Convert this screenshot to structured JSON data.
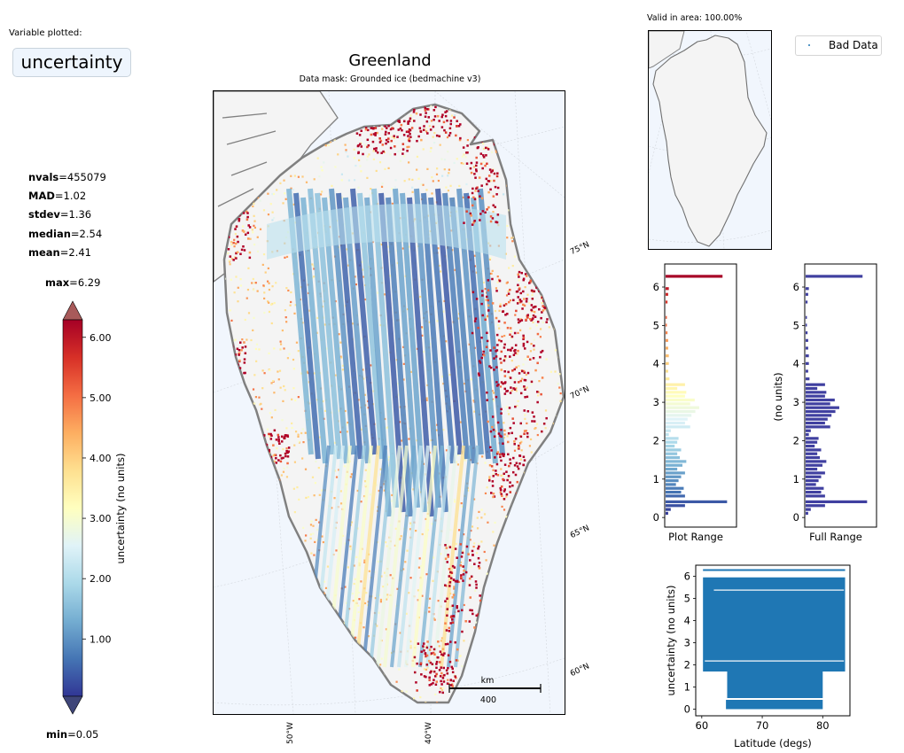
{
  "variable_panel": {
    "label": "Variable plotted:",
    "value": "uncertainty"
  },
  "stats": {
    "nvals": {
      "name": "nvals",
      "value": "455079"
    },
    "mad": {
      "name": "MAD",
      "value": "1.02"
    },
    "stdev": {
      "name": "stdev",
      "value": "1.36"
    },
    "median": {
      "name": "median",
      "value": "2.54"
    },
    "mean": {
      "name": "mean",
      "value": "2.41"
    },
    "max": {
      "name": "max",
      "value": "6.29"
    },
    "min": {
      "name": "min",
      "value": "0.05"
    },
    "eq": "="
  },
  "colorbar": {
    "label": "uncertainty (no units)",
    "ticks": [
      "6.00",
      "5.00",
      "4.00",
      "3.00",
      "2.00",
      "1.00"
    ],
    "tick_values": [
      6,
      5,
      4,
      3,
      2,
      1
    ],
    "range": [
      0.05,
      6.29
    ],
    "colormap": "RdYlBu_r",
    "over_color": "#a85a5a",
    "under_color": "#3f4679"
  },
  "map": {
    "title": "Greenland",
    "subtitle": "Data mask:  Grounded ice (bedmachine v3)",
    "lat_labels": [
      "75°N",
      "70°N",
      "65°N",
      "60°N"
    ],
    "lon_labels": [
      "50°W",
      "40°W"
    ],
    "scalebar_unit": "km",
    "scalebar_value": "400",
    "ocean_color": "#f1f6fd",
    "land_color": "#f4f4f4",
    "coast_color": "#808080"
  },
  "inset": {
    "valid_label": "Valid in area: 100.00%"
  },
  "legend": {
    "label": "Bad Data",
    "marker_color": "#1f77b4"
  },
  "chart_data": [
    {
      "type": "bar",
      "orientation": "horizontal",
      "title": "",
      "xlabel": "Plot Range",
      "ylabel": "",
      "ylim": [
        -0.25,
        6.6
      ],
      "y_ticks": [
        "0",
        "1",
        "2",
        "3",
        "4",
        "5",
        "6"
      ],
      "bin_centers": [
        0.1,
        0.2,
        0.3,
        0.4,
        0.55,
        0.65,
        0.75,
        0.85,
        0.95,
        1.05,
        1.15,
        1.25,
        1.35,
        1.45,
        1.55,
        1.65,
        1.75,
        1.85,
        1.95,
        2.05,
        2.15,
        2.25,
        2.35,
        2.45,
        2.55,
        2.65,
        2.75,
        2.85,
        2.95,
        3.05,
        3.15,
        3.25,
        3.35,
        3.45,
        3.6,
        3.8,
        4.0,
        4.2,
        4.4,
        4.6,
        4.8,
        5.0,
        5.2,
        5.6,
        5.8,
        5.95,
        6.27
      ],
      "values": [
        4,
        8,
        30,
        95,
        30,
        24,
        28,
        16,
        20,
        24,
        30,
        18,
        26,
        32,
        22,
        18,
        24,
        14,
        18,
        20,
        5,
        8,
        38,
        30,
        34,
        40,
        46,
        52,
        38,
        45,
        30,
        32,
        18,
        30,
        6,
        4,
        5,
        5,
        4,
        4,
        3,
        2,
        2,
        3,
        4,
        5,
        88
      ],
      "colormap": "RdYlBu_r"
    },
    {
      "type": "bar",
      "orientation": "horizontal",
      "title": "",
      "xlabel": "Full Range",
      "ylabel": "(no units)",
      "ylim": [
        -0.25,
        6.6
      ],
      "y_ticks": [
        "0",
        "1",
        "2",
        "3",
        "4",
        "5",
        "6"
      ],
      "bin_centers": [
        0.1,
        0.2,
        0.3,
        0.4,
        0.55,
        0.65,
        0.75,
        0.85,
        0.95,
        1.05,
        1.15,
        1.25,
        1.35,
        1.45,
        1.55,
        1.65,
        1.75,
        1.85,
        1.95,
        2.05,
        2.15,
        2.25,
        2.35,
        2.45,
        2.55,
        2.65,
        2.75,
        2.85,
        2.95,
        3.05,
        3.15,
        3.25,
        3.35,
        3.45,
        3.6,
        3.8,
        4.0,
        4.2,
        4.4,
        4.6,
        4.8,
        5.0,
        5.2,
        5.6,
        5.8,
        5.95,
        6.27
      ],
      "values": [
        4,
        8,
        30,
        95,
        30,
        24,
        28,
        16,
        20,
        24,
        30,
        18,
        26,
        32,
        22,
        18,
        24,
        14,
        18,
        20,
        5,
        8,
        38,
        30,
        34,
        40,
        46,
        52,
        38,
        45,
        30,
        32,
        18,
        30,
        6,
        4,
        5,
        5,
        4,
        4,
        3,
        2,
        2,
        3,
        4,
        5,
        88
      ],
      "bar_color": "#4040a0"
    },
    {
      "type": "scatter",
      "title": "",
      "xlabel": "Latitude (degs)",
      "ylabel": "uncertainty (no units)",
      "xlim": [
        59,
        84.5
      ],
      "ylim": [
        -0.3,
        6.5
      ],
      "x_ticks": [
        "60",
        "70",
        "80"
      ],
      "y_ticks": [
        "0",
        "1",
        "2",
        "3",
        "4",
        "5",
        "6"
      ],
      "regions": [
        {
          "lat_range": [
            60.2,
            83.7
          ],
          "value_range": [
            1.7,
            5.95
          ]
        },
        {
          "lat_range": [
            64.2,
            80.0
          ],
          "value_range": [
            0.5,
            1.7
          ]
        },
        {
          "lat_range": [
            64.0,
            80.0
          ],
          "value_range": [
            0.0,
            0.42
          ]
        },
        {
          "lat_range": [
            60.2,
            83.7
          ],
          "value_range": [
            6.25,
            6.32
          ]
        }
      ],
      "marker_color": "#1f77b4"
    }
  ]
}
